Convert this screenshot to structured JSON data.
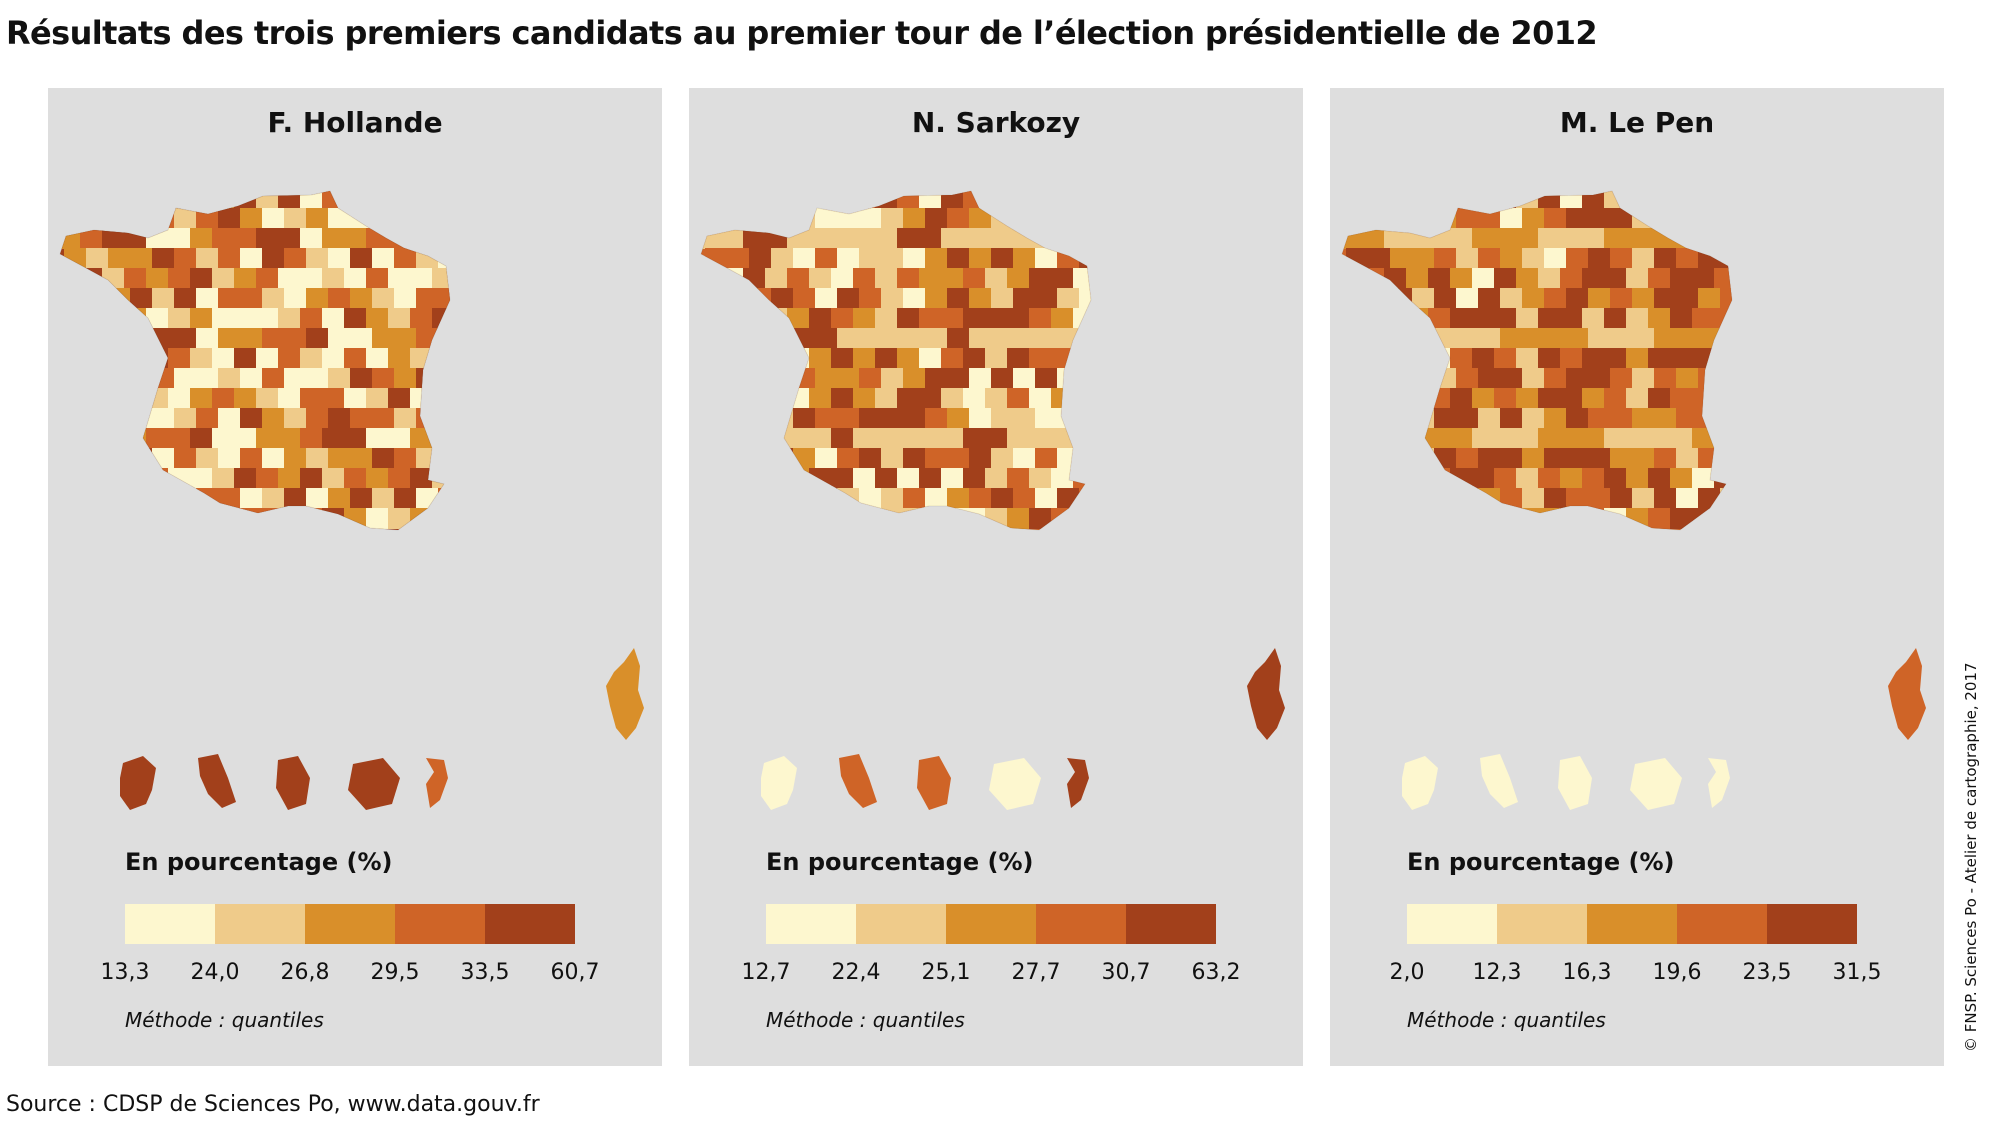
{
  "title": "Résultats des trois premiers candidats au premier tour de l’élection présidentielle de 2012",
  "palette": [
    "#fdf7cf",
    "#efcb8a",
    "#d98f2a",
    "#cf6427",
    "#a2401b"
  ],
  "panels": [
    {
      "candidate": "F. Hollande",
      "legend_title": "En pourcentage (%)",
      "breaks": [
        "13,3",
        "24,0",
        "26,8",
        "29,5",
        "33,5",
        "60,7"
      ],
      "method": "Méthode : quantiles",
      "map_base_class": 4,
      "pattern": [
        0,
        2,
        1,
        3,
        4,
        0,
        3,
        1,
        2,
        0,
        4,
        3,
        1,
        0,
        2,
        4,
        3,
        1,
        0,
        3
      ],
      "corsica_class": 2,
      "overseas_classes": [
        4,
        4,
        4,
        4,
        3
      ]
    },
    {
      "candidate": "N. Sarkozy",
      "legend_title": "En pourcentage (%)",
      "breaks": [
        "12,7",
        "22,4",
        "25,1",
        "27,7",
        "30,7",
        "63,2"
      ],
      "method": "Méthode : quantiles",
      "map_base_class": 3,
      "pattern": [
        4,
        3,
        0,
        1,
        4,
        2,
        0,
        3,
        4,
        1,
        0,
        2,
        3,
        4,
        1,
        0,
        3,
        4,
        2,
        1
      ],
      "corsica_class": 4,
      "overseas_classes": [
        0,
        3,
        3,
        0,
        4
      ]
    },
    {
      "candidate": "M. Le Pen",
      "legend_title": "En pourcentage (%)",
      "breaks": [
        "2,0",
        "12,3",
        "16,3",
        "19,6",
        "23,5",
        "31,5"
      ],
      "method": "Méthode : quantiles",
      "map_base_class": 3,
      "pattern": [
        4,
        4,
        3,
        2,
        1,
        4,
        3,
        4,
        2,
        1,
        0,
        3,
        4,
        4,
        2,
        3,
        1,
        4,
        3,
        2
      ],
      "corsica_class": 3,
      "overseas_classes": [
        0,
        0,
        0,
        0,
        0
      ]
    }
  ],
  "source": "Source : CDSP de Sciences Po, www.data.gouv.fr",
  "credit": "© FNSP. Sciences Po - Atelier de cartographie, 2017"
}
